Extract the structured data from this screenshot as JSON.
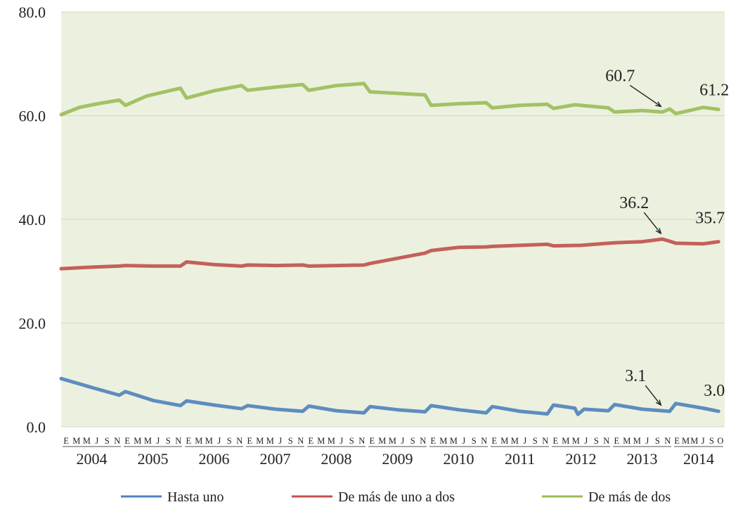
{
  "chart_data": {
    "type": "line",
    "title": "",
    "xlabel": "",
    "ylabel": "",
    "ylim": [
      0,
      80
    ],
    "yticks": [
      "0.0",
      "20.0",
      "40.0",
      "60.0",
      "80.0"
    ],
    "month_labels": [
      "E",
      "M",
      "M",
      "J",
      "S",
      "N"
    ],
    "last_year_month_labels": [
      "E",
      "M",
      "M",
      "J",
      "S",
      "O"
    ],
    "years": [
      "2004",
      "2005",
      "2006",
      "2007",
      "2008",
      "2009",
      "2010",
      "2011",
      "2012",
      "2013",
      "2014"
    ],
    "grid": true,
    "legend": "bottom",
    "background_color": "#ebf1de",
    "series": [
      {
        "name": "Hasta uno",
        "color": "#4f81bd",
        "values": [
          [
            2004.0,
            9.3
          ],
          [
            2004.5,
            7.6
          ],
          [
            2004.95,
            6.1
          ],
          [
            2005.05,
            6.8
          ],
          [
            2005.5,
            5.1
          ],
          [
            2005.95,
            4.1
          ],
          [
            2006.05,
            5.0
          ],
          [
            2006.5,
            4.2
          ],
          [
            2006.95,
            3.5
          ],
          [
            2007.05,
            4.1
          ],
          [
            2007.5,
            3.4
          ],
          [
            2007.95,
            3.0
          ],
          [
            2008.05,
            4.0
          ],
          [
            2008.5,
            3.1
          ],
          [
            2008.95,
            2.7
          ],
          [
            2009.05,
            3.9
          ],
          [
            2009.5,
            3.3
          ],
          [
            2009.95,
            2.9
          ],
          [
            2010.05,
            4.1
          ],
          [
            2010.5,
            3.3
          ],
          [
            2010.95,
            2.7
          ],
          [
            2011.05,
            3.9
          ],
          [
            2011.5,
            3.0
          ],
          [
            2011.95,
            2.5
          ],
          [
            2012.05,
            4.2
          ],
          [
            2012.4,
            3.6
          ],
          [
            2012.45,
            2.4
          ],
          [
            2012.55,
            3.4
          ],
          [
            2012.95,
            3.1
          ],
          [
            2013.05,
            4.3
          ],
          [
            2013.5,
            3.4
          ],
          [
            2013.83,
            3.1
          ],
          [
            2013.95,
            3.0
          ],
          [
            2014.05,
            4.5
          ],
          [
            2014.5,
            3.6
          ],
          [
            2014.75,
            3.0
          ]
        ]
      },
      {
        "name": "De más de uno a dos",
        "color": "#c0504d",
        "values": [
          [
            2004.0,
            30.5
          ],
          [
            2004.5,
            30.8
          ],
          [
            2004.95,
            31.0
          ],
          [
            2005.05,
            31.1
          ],
          [
            2005.5,
            31.0
          ],
          [
            2005.95,
            31.0
          ],
          [
            2006.05,
            31.8
          ],
          [
            2006.5,
            31.3
          ],
          [
            2006.95,
            31.0
          ],
          [
            2007.05,
            31.2
          ],
          [
            2007.5,
            31.1
          ],
          [
            2007.95,
            31.2
          ],
          [
            2008.05,
            31.0
          ],
          [
            2008.5,
            31.1
          ],
          [
            2008.95,
            31.2
          ],
          [
            2009.05,
            31.5
          ],
          [
            2009.5,
            32.5
          ],
          [
            2009.95,
            33.5
          ],
          [
            2010.05,
            34.0
          ],
          [
            2010.5,
            34.6
          ],
          [
            2010.95,
            34.7
          ],
          [
            2011.05,
            34.8
          ],
          [
            2011.5,
            35.0
          ],
          [
            2011.95,
            35.2
          ],
          [
            2012.05,
            34.9
          ],
          [
            2012.5,
            35.0
          ],
          [
            2012.95,
            35.4
          ],
          [
            2013.05,
            35.5
          ],
          [
            2013.5,
            35.7
          ],
          [
            2013.83,
            36.2
          ],
          [
            2013.95,
            35.8
          ],
          [
            2014.05,
            35.4
          ],
          [
            2014.5,
            35.3
          ],
          [
            2014.75,
            35.7
          ]
        ]
      },
      {
        "name": "De más de dos",
        "color": "#9bbb59",
        "values": [
          [
            2004.0,
            60.2
          ],
          [
            2004.3,
            61.6
          ],
          [
            2004.6,
            62.3
          ],
          [
            2004.95,
            63.0
          ],
          [
            2005.05,
            62.0
          ],
          [
            2005.4,
            63.8
          ],
          [
            2005.95,
            65.3
          ],
          [
            2006.05,
            63.4
          ],
          [
            2006.5,
            64.8
          ],
          [
            2006.95,
            65.8
          ],
          [
            2007.05,
            64.9
          ],
          [
            2007.5,
            65.5
          ],
          [
            2007.95,
            66.0
          ],
          [
            2008.05,
            64.9
          ],
          [
            2008.5,
            65.8
          ],
          [
            2008.95,
            66.2
          ],
          [
            2009.05,
            64.6
          ],
          [
            2009.5,
            64.3
          ],
          [
            2009.95,
            64.0
          ],
          [
            2010.05,
            62.0
          ],
          [
            2010.5,
            62.3
          ],
          [
            2010.95,
            62.5
          ],
          [
            2011.05,
            61.5
          ],
          [
            2011.5,
            62.0
          ],
          [
            2011.95,
            62.2
          ],
          [
            2012.05,
            61.4
          ],
          [
            2012.4,
            62.1
          ],
          [
            2012.95,
            61.5
          ],
          [
            2013.05,
            60.7
          ],
          [
            2013.5,
            61.0
          ],
          [
            2013.83,
            60.7
          ],
          [
            2013.95,
            61.3
          ],
          [
            2014.05,
            60.4
          ],
          [
            2014.5,
            61.6
          ],
          [
            2014.75,
            61.2
          ]
        ]
      }
    ],
    "annotations": [
      {
        "text": "60.7",
        "series": "De más de dos",
        "x": 2013.83,
        "y": 60.7
      },
      {
        "text": "61.2",
        "series": "De más de dos",
        "x": 2014.75,
        "y": 61.2
      },
      {
        "text": "36.2",
        "series": "De más de uno a dos",
        "x": 2013.83,
        "y": 36.2
      },
      {
        "text": "35.7",
        "series": "De más de uno a dos",
        "x": 2014.75,
        "y": 35.7
      },
      {
        "text": "3.1",
        "series": "Hasta uno",
        "x": 2013.83,
        "y": 3.1
      },
      {
        "text": "3.0",
        "series": "Hasta uno",
        "x": 2014.75,
        "y": 3.0
      }
    ]
  }
}
